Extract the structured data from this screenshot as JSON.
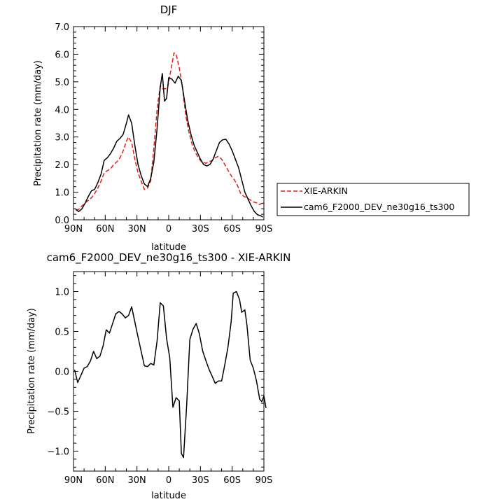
{
  "chart_data": [
    {
      "type": "line",
      "title": "DJF",
      "xlabel": "latitude",
      "ylabel": "Precipitation rate (mm/day)",
      "xticks": [
        "90N",
        "60N",
        "30N",
        "0",
        "30S",
        "60S",
        "90S"
      ],
      "xlim": [
        90,
        -90
      ],
      "ylim": [
        0,
        7
      ],
      "yticks": [
        "0.0",
        "1.0",
        "2.0",
        "3.0",
        "4.0",
        "5.0",
        "6.0",
        "7.0"
      ],
      "legend_position": "right",
      "series": [
        {
          "name": "XIE-ARKIN",
          "color": "#e0211b",
          "style": "dashed",
          "points": [
            [
              88,
              0.35
            ],
            [
              85,
              0.38
            ],
            [
              82,
              0.5
            ],
            [
              79,
              0.62
            ],
            [
              76,
              0.7
            ],
            [
              73,
              0.8
            ],
            [
              70,
              0.95
            ],
            [
              67,
              1.15
            ],
            [
              64,
              1.4
            ],
            [
              61,
              1.7
            ],
            [
              58,
              1.78
            ],
            [
              55,
              1.85
            ],
            [
              52,
              2.0
            ],
            [
              49,
              2.1
            ],
            [
              46,
              2.25
            ],
            [
              43,
              2.5
            ],
            [
              40,
              2.85
            ],
            [
              38,
              3.0
            ],
            [
              35,
              2.8
            ],
            [
              32,
              2.2
            ],
            [
              29,
              1.7
            ],
            [
              26,
              1.4
            ],
            [
              23,
              1.1
            ],
            [
              20,
              1.15
            ],
            [
              17,
              1.4
            ],
            [
              14,
              2.6
            ],
            [
              11,
              4.0
            ],
            [
              8,
              4.85
            ],
            [
              6,
              4.75
            ],
            [
              3,
              4.75
            ],
            [
              1,
              4.8
            ],
            [
              -2,
              5.4
            ],
            [
              -5,
              6.05
            ],
            [
              -7,
              6.0
            ],
            [
              -10,
              5.5
            ],
            [
              -13,
              4.8
            ],
            [
              -16,
              3.8
            ],
            [
              -19,
              3.2
            ],
            [
              -22,
              2.75
            ],
            [
              -25,
              2.45
            ],
            [
              -28,
              2.25
            ],
            [
              -31,
              2.1
            ],
            [
              -35,
              2.05
            ],
            [
              -38,
              2.1
            ],
            [
              -41,
              2.15
            ],
            [
              -44,
              2.25
            ],
            [
              -47,
              2.3
            ],
            [
              -50,
              2.2
            ],
            [
              -53,
              2.0
            ],
            [
              -56,
              1.8
            ],
            [
              -59,
              1.6
            ],
            [
              -62,
              1.45
            ],
            [
              -65,
              1.25
            ],
            [
              -68,
              0.95
            ],
            [
              -71,
              0.85
            ],
            [
              -74,
              0.8
            ],
            [
              -77,
              0.72
            ],
            [
              -80,
              0.65
            ],
            [
              -83,
              0.62
            ],
            [
              -86,
              0.55
            ],
            [
              -88,
              0.6
            ]
          ]
        },
        {
          "name": "cam6_F2000_DEV_ne30g16_ts300",
          "color": "#000000",
          "style": "solid",
          "points": [
            [
              88,
              0.38
            ],
            [
              85,
              0.3
            ],
            [
              82,
              0.4
            ],
            [
              79,
              0.6
            ],
            [
              76,
              0.85
            ],
            [
              73,
              1.05
            ],
            [
              70,
              1.1
            ],
            [
              67,
              1.35
            ],
            [
              64,
              1.65
            ],
            [
              61,
              2.15
            ],
            [
              58,
              2.25
            ],
            [
              55,
              2.4
            ],
            [
              52,
              2.6
            ],
            [
              49,
              2.85
            ],
            [
              46,
              2.95
            ],
            [
              43,
              3.1
            ],
            [
              40,
              3.5
            ],
            [
              38,
              3.8
            ],
            [
              35,
              3.5
            ],
            [
              32,
              2.7
            ],
            [
              29,
              2.0
            ],
            [
              26,
              1.6
            ],
            [
              23,
              1.3
            ],
            [
              20,
              1.2
            ],
            [
              17,
              1.5
            ],
            [
              14,
              2.1
            ],
            [
              11,
              3.3
            ],
            [
              8,
              4.8
            ],
            [
              6,
              5.3
            ],
            [
              4,
              4.3
            ],
            [
              2,
              4.4
            ],
            [
              0,
              5.15
            ],
            [
              -3,
              5.1
            ],
            [
              -6,
              4.95
            ],
            [
              -9,
              5.2
            ],
            [
              -12,
              5.05
            ],
            [
              -15,
              4.3
            ],
            [
              -18,
              3.6
            ],
            [
              -21,
              3.1
            ],
            [
              -24,
              2.7
            ],
            [
              -27,
              2.45
            ],
            [
              -30,
              2.2
            ],
            [
              -33,
              2.0
            ],
            [
              -36,
              1.95
            ],
            [
              -39,
              2.0
            ],
            [
              -42,
              2.2
            ],
            [
              -45,
              2.5
            ],
            [
              -48,
              2.8
            ],
            [
              -51,
              2.9
            ],
            [
              -54,
              2.92
            ],
            [
              -57,
              2.75
            ],
            [
              -60,
              2.5
            ],
            [
              -63,
              2.2
            ],
            [
              -66,
              1.9
            ],
            [
              -69,
              1.45
            ],
            [
              -72,
              1.0
            ],
            [
              -75,
              0.75
            ],
            [
              -78,
              0.5
            ],
            [
              -81,
              0.3
            ],
            [
              -84,
              0.18
            ],
            [
              -87,
              0.15
            ],
            [
              -89,
              0.1
            ]
          ]
        }
      ]
    },
    {
      "type": "line",
      "title": "cam6_F2000_DEV_ne30g16_ts300 - XIE-ARKIN",
      "xlabel": "latitude",
      "ylabel": "Precipitation rate (mm/day)",
      "xticks": [
        "90N",
        "60N",
        "30N",
        "0",
        "30S",
        "60S",
        "90S"
      ],
      "xlim": [
        90,
        -90
      ],
      "ylim": [
        -1.25,
        1.25
      ],
      "yticks": [
        "−1.0",
        "−0.5",
        "0.0",
        "0.5",
        "1.0"
      ],
      "series": [
        {
          "color": "#000000",
          "style": "solid",
          "points": [
            [
              89,
              0.02
            ],
            [
              86,
              -0.14
            ],
            [
              83,
              -0.05
            ],
            [
              80,
              0.04
            ],
            [
              77,
              0.06
            ],
            [
              74,
              0.13
            ],
            [
              71,
              0.25
            ],
            [
              68,
              0.16
            ],
            [
              65,
              0.19
            ],
            [
              62,
              0.32
            ],
            [
              59,
              0.52
            ],
            [
              56,
              0.48
            ],
            [
              53,
              0.6
            ],
            [
              50,
              0.72
            ],
            [
              47,
              0.75
            ],
            [
              44,
              0.72
            ],
            [
              41,
              0.67
            ],
            [
              38,
              0.7
            ],
            [
              35,
              0.81
            ],
            [
              32,
              0.62
            ],
            [
              29,
              0.43
            ],
            [
              26,
              0.25
            ],
            [
              23,
              0.07
            ],
            [
              20,
              0.06
            ],
            [
              17,
              0.1
            ],
            [
              14,
              0.08
            ],
            [
              11,
              0.38
            ],
            [
              8,
              0.86
            ],
            [
              5,
              0.82
            ],
            [
              2,
              0.41
            ],
            [
              -1,
              0.17
            ],
            [
              -4,
              -0.45
            ],
            [
              -7,
              -0.33
            ],
            [
              -10,
              -0.37
            ],
            [
              -12,
              -1.03
            ],
            [
              -14,
              -1.08
            ],
            [
              -17,
              -0.42
            ],
            [
              -20,
              0.4
            ],
            [
              -23,
              0.53
            ],
            [
              -26,
              0.6
            ],
            [
              -29,
              0.47
            ],
            [
              -32,
              0.26
            ],
            [
              -35,
              0.14
            ],
            [
              -38,
              0.03
            ],
            [
              -41,
              -0.06
            ],
            [
              -44,
              -0.15
            ],
            [
              -47,
              -0.12
            ],
            [
              -50,
              -0.12
            ],
            [
              -53,
              0.08
            ],
            [
              -56,
              0.3
            ],
            [
              -59,
              0.62
            ],
            [
              -61,
              0.98
            ],
            [
              -64,
              1.0
            ],
            [
              -67,
              0.9
            ],
            [
              -69,
              0.74
            ],
            [
              -72,
              0.77
            ],
            [
              -74,
              0.58
            ],
            [
              -77,
              0.14
            ],
            [
              -80,
              0.04
            ],
            [
              -83,
              -0.12
            ],
            [
              -86,
              -0.35
            ],
            [
              -88,
              -0.38
            ],
            [
              -90,
              -0.31
            ],
            [
              -92,
              -0.46
            ]
          ]
        }
      ]
    }
  ]
}
